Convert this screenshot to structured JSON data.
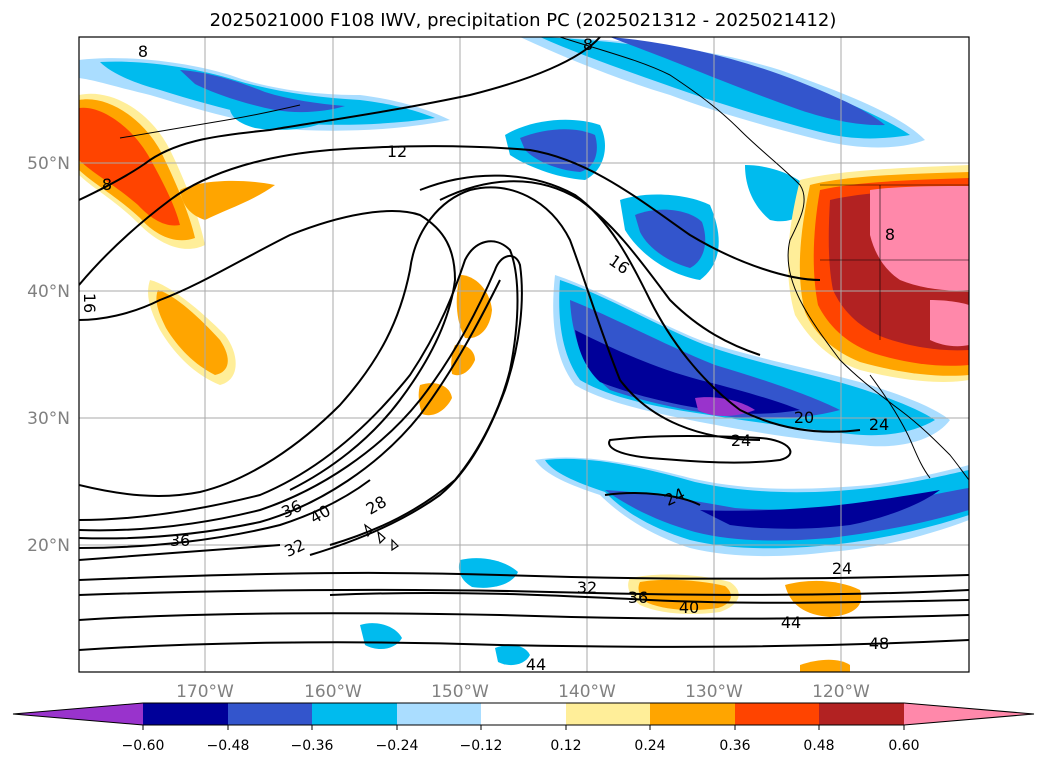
{
  "title": "2025021000 F108 IWV, precipitation PC (2025021312 - 2025021412)",
  "lat_labels": [
    "50°N",
    "40°N",
    "30°N",
    "20°N"
  ],
  "lon_labels": [
    "170°W",
    "160°W",
    "150°W",
    "140°W",
    "130°W",
    "120°W"
  ],
  "colorbar": {
    "ticks": [
      "−0.60",
      "−0.48",
      "−0.36",
      "−0.24",
      "−0.12",
      "0.12",
      "0.24",
      "0.36",
      "0.48",
      "0.60"
    ],
    "colors": [
      "#9933cc",
      "#000099",
      "#3355cc",
      "#00bbee",
      "#aaddff",
      "#ffffff",
      "#ffee99",
      "#ffa500",
      "#ff4400",
      "#b22222",
      "#ff88aa"
    ]
  },
  "contour_labels": [
    {
      "id": "c12",
      "text": "12"
    },
    {
      "id": "c8a",
      "text": "8"
    },
    {
      "id": "c8b",
      "text": "8"
    },
    {
      "id": "c8c",
      "text": "8"
    },
    {
      "id": "c8d",
      "text": "8"
    },
    {
      "id": "c16a",
      "text": "16"
    },
    {
      "id": "c16b",
      "text": "16"
    },
    {
      "id": "c20",
      "text": "20"
    },
    {
      "id": "c24a",
      "text": "24"
    },
    {
      "id": "c24b",
      "text": "24"
    },
    {
      "id": "c24c",
      "text": "24"
    },
    {
      "id": "c24d",
      "text": "24"
    },
    {
      "id": "c28",
      "text": "28"
    },
    {
      "id": "c32a",
      "text": "32"
    },
    {
      "id": "c32b",
      "text": "32"
    },
    {
      "id": "c36a",
      "text": "36"
    },
    {
      "id": "c36b",
      "text": "36"
    },
    {
      "id": "c36c",
      "text": "36"
    },
    {
      "id": "c40a",
      "text": "40"
    },
    {
      "id": "c40b",
      "text": "40"
    },
    {
      "id": "c44a",
      "text": "44"
    },
    {
      "id": "c44b",
      "text": "44"
    },
    {
      "id": "c48",
      "text": "48"
    }
  ]
}
